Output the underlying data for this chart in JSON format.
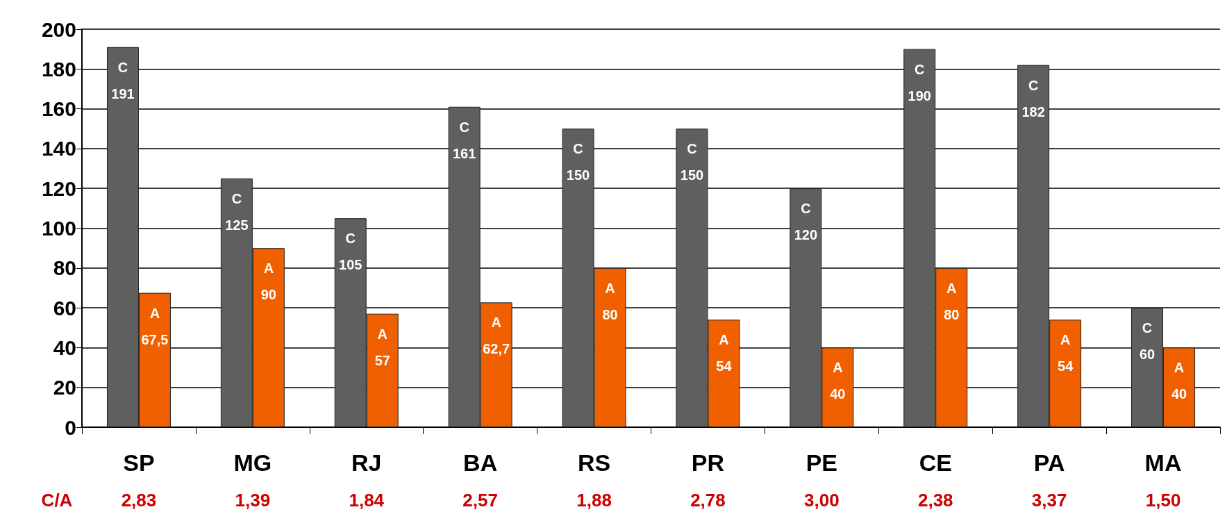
{
  "chart_data": {
    "type": "bar",
    "categories": [
      "SP",
      "MG",
      "RJ",
      "BA",
      "RS",
      "PR",
      "PE",
      "CE",
      "PA",
      "MA"
    ],
    "series": [
      {
        "name": "C",
        "color": "#5f5f5f",
        "values": [
          191,
          125,
          105,
          161,
          150,
          150,
          120,
          190,
          182,
          60
        ],
        "value_labels": [
          "191",
          "125",
          "105",
          "161",
          "150",
          "150",
          "120",
          "190",
          "182",
          "60"
        ]
      },
      {
        "name": "A",
        "color": "#f06000",
        "values": [
          67.5,
          90,
          57,
          62.7,
          80,
          54,
          40,
          80,
          54,
          40
        ],
        "value_labels": [
          "67,5",
          "90",
          "57",
          "62,7",
          "80",
          "54",
          "40",
          "80",
          "54",
          "40"
        ]
      }
    ],
    "ylim": [
      0,
      200
    ],
    "yticks": [
      0,
      20,
      40,
      60,
      80,
      100,
      120,
      140,
      160,
      180,
      200
    ],
    "grid": "y",
    "legend": false,
    "annotations": [
      "C/A",
      "2,83",
      "1,39",
      "1,84",
      "2,57",
      "1,88",
      "2,78",
      "3,00",
      "2,38",
      "3,37",
      "1,50"
    ]
  }
}
